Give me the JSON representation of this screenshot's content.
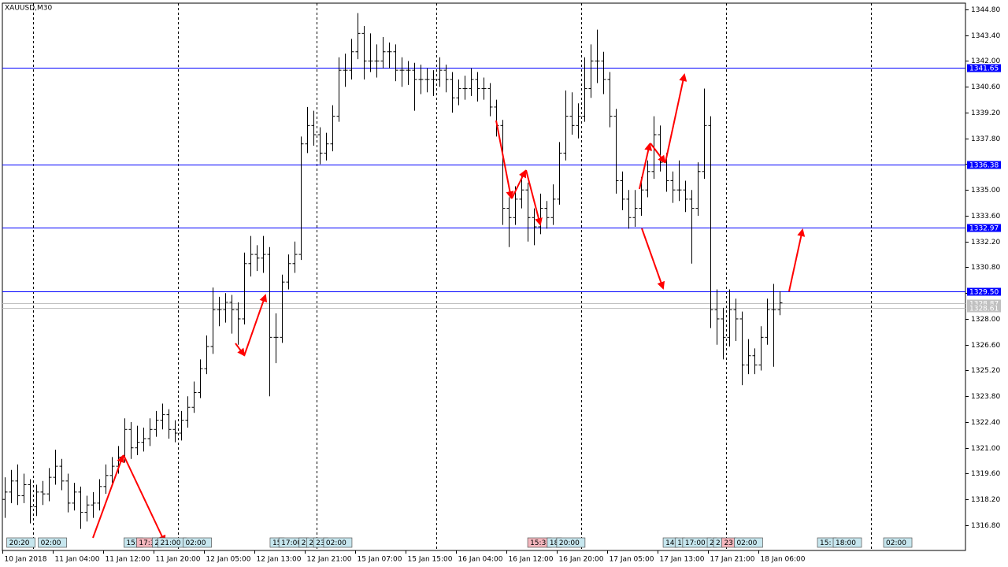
{
  "chart_data": {
    "type": "ohlc",
    "title": "XAUUSD,M30",
    "color": "#000000",
    "bars": [
      [
        1318.2,
        1319.4,
        1317.2,
        1318.6
      ],
      [
        1318.6,
        1319.8,
        1318.0,
        1319.2
      ],
      [
        1319.2,
        1320.1,
        1317.9,
        1318.4
      ],
      [
        1318.4,
        1319.6,
        1318.0,
        1319.0
      ],
      [
        1319.0,
        1319.3,
        1316.9,
        1317.8
      ],
      [
        1317.8,
        1319.0,
        1317.3,
        1318.6
      ],
      [
        1318.6,
        1319.2,
        1317.9,
        1318.5
      ],
      [
        1318.5,
        1319.9,
        1318.1,
        1319.4
      ],
      [
        1319.4,
        1320.9,
        1319.0,
        1320.0
      ],
      [
        1320.0,
        1320.4,
        1318.7,
        1319.2
      ],
      [
        1319.2,
        1319.6,
        1317.5,
        1318.0
      ],
      [
        1318.0,
        1319.1,
        1317.6,
        1318.6
      ],
      [
        1318.6,
        1318.9,
        1316.6,
        1317.5
      ],
      [
        1317.5,
        1318.4,
        1317.0,
        1317.9
      ],
      [
        1317.9,
        1318.6,
        1317.2,
        1318.0
      ],
      [
        1318.0,
        1319.3,
        1317.6,
        1318.9
      ],
      [
        1318.9,
        1320.1,
        1318.5,
        1319.5
      ],
      [
        1319.5,
        1320.5,
        1319.1,
        1320.0
      ],
      [
        1320.0,
        1321.1,
        1319.6,
        1320.5
      ],
      [
        1320.5,
        1322.6,
        1320.2,
        1322.0
      ],
      [
        1322.0,
        1322.4,
        1320.4,
        1321.0
      ],
      [
        1321.0,
        1322.2,
        1320.6,
        1321.3
      ],
      [
        1321.3,
        1322.1,
        1320.8,
        1321.5
      ],
      [
        1321.5,
        1322.6,
        1321.1,
        1322.0
      ],
      [
        1322.0,
        1323.0,
        1321.6,
        1322.5
      ],
      [
        1322.5,
        1323.4,
        1322.0,
        1322.8
      ],
      [
        1322.8,
        1323.1,
        1321.5,
        1322.0
      ],
      [
        1322.0,
        1322.5,
        1321.3,
        1321.8
      ],
      [
        1321.8,
        1323.0,
        1321.4,
        1322.5
      ],
      [
        1322.5,
        1323.8,
        1322.1,
        1323.2
      ],
      [
        1323.2,
        1324.6,
        1322.9,
        1324.0
      ],
      [
        1324.0,
        1325.8,
        1323.7,
        1325.3
      ],
      [
        1325.3,
        1327.1,
        1325.0,
        1326.5
      ],
      [
        1326.5,
        1329.7,
        1326.1,
        1328.5
      ],
      [
        1328.5,
        1329.2,
        1327.6,
        1328.5
      ],
      [
        1328.5,
        1329.4,
        1327.8,
        1328.9
      ],
      [
        1328.9,
        1329.3,
        1327.2,
        1328.5
      ],
      [
        1328.5,
        1328.9,
        1326.6,
        1328.0
      ],
      [
        1328.0,
        1331.6,
        1327.7,
        1331.0
      ],
      [
        1331.0,
        1332.5,
        1330.3,
        1331.5
      ],
      [
        1331.5,
        1332.0,
        1330.6,
        1331.3
      ],
      [
        1331.3,
        1332.5,
        1330.5,
        1331.5
      ],
      [
        1331.5,
        1331.9,
        1323.8,
        1327.0
      ],
      [
        1327.0,
        1328.3,
        1325.6,
        1327.0
      ],
      [
        1327.0,
        1330.4,
        1326.7,
        1330.0
      ],
      [
        1330.0,
        1331.5,
        1329.6,
        1331.0
      ],
      [
        1331.0,
        1332.2,
        1330.5,
        1331.5
      ],
      [
        1331.5,
        1337.9,
        1331.2,
        1337.5
      ],
      [
        1337.5,
        1339.5,
        1337.0,
        1338.5
      ],
      [
        1338.5,
        1339.3,
        1337.4,
        1338.0
      ],
      [
        1338.0,
        1338.4,
        1336.4,
        1337.0
      ],
      [
        1337.0,
        1338.1,
        1336.6,
        1337.5
      ],
      [
        1337.5,
        1339.6,
        1337.1,
        1339.0
      ],
      [
        1339.0,
        1342.2,
        1338.7,
        1341.5
      ],
      [
        1341.5,
        1342.4,
        1340.6,
        1341.5
      ],
      [
        1341.5,
        1343.2,
        1341.0,
        1342.5
      ],
      [
        1342.5,
        1344.6,
        1342.1,
        1343.5
      ],
      [
        1343.5,
        1343.9,
        1341.0,
        1342.0
      ],
      [
        1342.0,
        1343.5,
        1341.4,
        1342.0
      ],
      [
        1342.0,
        1342.9,
        1341.1,
        1342.0
      ],
      [
        1342.0,
        1343.3,
        1341.6,
        1342.5
      ],
      [
        1342.5,
        1343.0,
        1341.6,
        1342.5
      ],
      [
        1342.5,
        1342.9,
        1340.9,
        1341.5
      ],
      [
        1341.5,
        1342.2,
        1340.6,
        1341.5
      ],
      [
        1341.5,
        1342.0,
        1340.7,
        1341.5
      ],
      [
        1341.5,
        1341.9,
        1339.3,
        1341.0
      ],
      [
        1341.0,
        1341.8,
        1340.2,
        1341.0
      ],
      [
        1341.0,
        1341.6,
        1340.3,
        1341.0
      ],
      [
        1341.0,
        1341.5,
        1340.1,
        1341.0
      ],
      [
        1341.0,
        1342.2,
        1340.6,
        1341.5
      ],
      [
        1341.5,
        1341.8,
        1340.3,
        1341.0
      ],
      [
        1341.0,
        1341.4,
        1339.2,
        1340.0
      ],
      [
        1340.0,
        1341.0,
        1339.6,
        1340.5
      ],
      [
        1340.5,
        1341.2,
        1339.9,
        1340.5
      ],
      [
        1340.5,
        1341.6,
        1340.1,
        1341.0
      ],
      [
        1341.0,
        1341.4,
        1339.8,
        1340.5
      ],
      [
        1340.5,
        1341.1,
        1339.9,
        1340.5
      ],
      [
        1340.5,
        1340.8,
        1339.0,
        1339.5
      ],
      [
        1339.5,
        1339.9,
        1337.9,
        1338.5
      ],
      [
        1338.5,
        1338.8,
        1333.1,
        1334.0
      ],
      [
        1334.0,
        1334.6,
        1331.9,
        1333.5
      ],
      [
        1333.5,
        1335.2,
        1333.1,
        1334.5
      ],
      [
        1334.5,
        1335.9,
        1334.0,
        1335.0
      ],
      [
        1335.0,
        1335.4,
        1332.2,
        1333.5
      ],
      [
        1333.5,
        1334.0,
        1332.0,
        1333.0
      ],
      [
        1333.0,
        1334.8,
        1332.6,
        1334.0
      ],
      [
        1334.0,
        1334.4,
        1332.9,
        1333.5
      ],
      [
        1333.5,
        1335.3,
        1333.1,
        1334.5
      ],
      [
        1334.5,
        1337.6,
        1334.2,
        1337.0
      ],
      [
        1337.0,
        1340.4,
        1336.6,
        1339.0
      ],
      [
        1339.0,
        1340.3,
        1338.0,
        1338.5
      ],
      [
        1338.5,
        1339.7,
        1337.8,
        1339.0
      ],
      [
        1339.0,
        1342.2,
        1338.7,
        1340.5
      ],
      [
        1340.5,
        1342.9,
        1340.0,
        1342.0
      ],
      [
        1342.0,
        1343.7,
        1340.8,
        1342.0
      ],
      [
        1342.0,
        1342.5,
        1340.2,
        1341.0
      ],
      [
        1341.0,
        1341.4,
        1338.4,
        1339.0
      ],
      [
        1339.0,
        1339.4,
        1334.8,
        1335.5
      ],
      [
        1335.5,
        1336.0,
        1333.9,
        1334.5
      ],
      [
        1334.5,
        1335.0,
        1332.9,
        1333.5
      ],
      [
        1333.5,
        1335.0,
        1333.0,
        1334.0
      ],
      [
        1334.0,
        1335.7,
        1333.6,
        1335.0
      ],
      [
        1335.0,
        1336.6,
        1334.6,
        1336.0
      ],
      [
        1336.0,
        1339.0,
        1335.6,
        1338.0
      ],
      [
        1338.0,
        1338.5,
        1336.0,
        1336.5
      ],
      [
        1336.5,
        1337.0,
        1334.9,
        1335.5
      ],
      [
        1335.5,
        1336.0,
        1334.3,
        1335.0
      ],
      [
        1335.0,
        1336.6,
        1334.4,
        1335.0
      ],
      [
        1335.0,
        1335.5,
        1333.8,
        1334.5
      ],
      [
        1334.5,
        1335.0,
        1331.0,
        1334.0
      ],
      [
        1334.0,
        1336.5,
        1333.6,
        1336.0
      ],
      [
        1336.0,
        1340.5,
        1335.6,
        1338.5
      ],
      [
        1338.5,
        1339.0,
        1327.5,
        1328.5
      ],
      [
        1328.5,
        1329.6,
        1326.6,
        1328.0
      ],
      [
        1328.0,
        1328.6,
        1325.8,
        1327.0
      ],
      [
        1327.0,
        1329.6,
        1326.5,
        1328.5
      ],
      [
        1328.5,
        1329.1,
        1326.8,
        1328.0
      ],
      [
        1328.0,
        1328.4,
        1324.4,
        1325.5
      ],
      [
        1325.5,
        1326.9,
        1325.0,
        1326.0
      ],
      [
        1326.0,
        1326.4,
        1325.0,
        1325.5
      ],
      [
        1325.5,
        1327.6,
        1325.2,
        1327.0
      ],
      [
        1327.0,
        1329.1,
        1326.6,
        1328.5
      ],
      [
        1328.5,
        1329.9,
        1325.4,
        1328.5
      ],
      [
        1328.5,
        1329.5,
        1328.2,
        1328.87
      ]
    ],
    "xlim": [
      -0.4,
      152.5
    ],
    "xticks": [
      {
        "value": 0,
        "label": "10 Jan 2018"
      },
      {
        "value": 8,
        "label": "11 Jan 04:00"
      },
      {
        "value": 16,
        "label": "11 Jan 12:00"
      },
      {
        "value": 24,
        "label": "11 Jan 20:00"
      },
      {
        "value": 32,
        "label": "12 Jan 05:00"
      },
      {
        "value": 40,
        "label": "12 Jan 13:00"
      },
      {
        "value": 48,
        "label": "12 Jan 21:00"
      },
      {
        "value": 56,
        "label": "15 Jan 07:00"
      },
      {
        "value": 64,
        "label": "15 Jan 15:00"
      },
      {
        "value": 72,
        "label": "16 Jan 04:00"
      },
      {
        "value": 80,
        "label": "16 Jan 12:00"
      },
      {
        "value": 88,
        "label": "16 Jan 20:00"
      },
      {
        "value": 96,
        "label": "17 Jan 05:00"
      },
      {
        "value": 104,
        "label": "17 Jan 13:00"
      },
      {
        "value": 112,
        "label": "17 Jan 21:00"
      },
      {
        "value": 120,
        "label": "18 Jan 06:00"
      }
    ],
    "separators": [
      4.5,
      27.5,
      49.5,
      68.5,
      91.5,
      114.5,
      137.5
    ],
    "ylim": [
      1315.43,
      1345.14
    ],
    "yticks": [
      {
        "value": 1316.8,
        "label": "1316.80"
      },
      {
        "value": 1318.2,
        "label": "1318.20"
      },
      {
        "value": 1319.6,
        "label": "1319.60"
      },
      {
        "value": 1321,
        "label": "1321.00"
      },
      {
        "value": 1322.4,
        "label": "1322.40"
      },
      {
        "value": 1323.8,
        "label": "1323.80"
      },
      {
        "value": 1325.2,
        "label": "1325.20"
      },
      {
        "value": 1326.6,
        "label": "1326.60"
      },
      {
        "value": 1328,
        "label": "1328.00"
      },
      {
        "value": 1329.4,
        "label": "1329.40"
      },
      {
        "value": 1330.8,
        "label": "1330.80"
      },
      {
        "value": 1332.2,
        "label": "1332.20"
      },
      {
        "value": 1333.6,
        "label": "1333.60"
      },
      {
        "value": 1335,
        "label": "1335.00"
      },
      {
        "value": 1336.4,
        "label": "1336.40"
      },
      {
        "value": 1337.8,
        "label": "1337.80"
      },
      {
        "value": 1339.2,
        "label": "1339.20"
      },
      {
        "value": 1340.6,
        "label": "1340.60"
      },
      {
        "value": 1342,
        "label": "1342.00"
      },
      {
        "value": 1343.4,
        "label": "1343.40"
      },
      {
        "value": 1344.8,
        "label": "1344.80"
      }
    ],
    "levels": [
      {
        "value": 1341.65,
        "label": "1341.65",
        "color": "#0000ff"
      },
      {
        "value": 1336.38,
        "label": "1336.38",
        "color": "#0000ff"
      },
      {
        "value": 1332.97,
        "label": "1332.97",
        "color": "#0000ff"
      },
      {
        "value": 1329.5,
        "label": "1329.50",
        "color": "#0000ff"
      },
      {
        "value": 1328.87,
        "label": "1328.87",
        "color": "#c0c0c0"
      },
      {
        "value": 1328.61,
        "label": "1328.61",
        "color": "#c0c0c0"
      }
    ],
    "events": [
      {
        "x": 0.3,
        "label": "20:20"
      },
      {
        "x": 5.3,
        "label": "02:00"
      },
      {
        "x": 18.9,
        "label": "15:"
      },
      {
        "x": 20.9,
        "label": "17:3",
        "color": "#f4b6bd"
      },
      {
        "x": 23.4,
        "label": "2"
      },
      {
        "x": 24.3,
        "label": "21:00"
      },
      {
        "x": 28.3,
        "label": "02:00"
      },
      {
        "x": 42.1,
        "label": "15"
      },
      {
        "x": 43.5,
        "label": "17:00"
      },
      {
        "x": 46.7,
        "label": "2"
      },
      {
        "x": 47.9,
        "label": "2"
      },
      {
        "x": 49,
        "label": "23"
      },
      {
        "x": 50.6,
        "label": "02:00"
      },
      {
        "x": 83,
        "label": "15:3",
        "color": "#f4b6bd"
      },
      {
        "x": 86.1,
        "label": "18"
      },
      {
        "x": 87.6,
        "label": "20:00"
      },
      {
        "x": 104.5,
        "label": "14"
      },
      {
        "x": 106.4,
        "label": "1"
      },
      {
        "x": 107.6,
        "label": "17:00"
      },
      {
        "x": 111.5,
        "label": "2"
      },
      {
        "x": 112.5,
        "label": "2"
      },
      {
        "x": 113.8,
        "label": "23",
        "color": "#f4b6bd"
      },
      {
        "x": 115.8,
        "label": "02:00"
      },
      {
        "x": 129,
        "label": "15:"
      },
      {
        "x": 131.5,
        "label": "18:00"
      },
      {
        "x": 139.5,
        "label": "02:00"
      }
    ]
  }
}
